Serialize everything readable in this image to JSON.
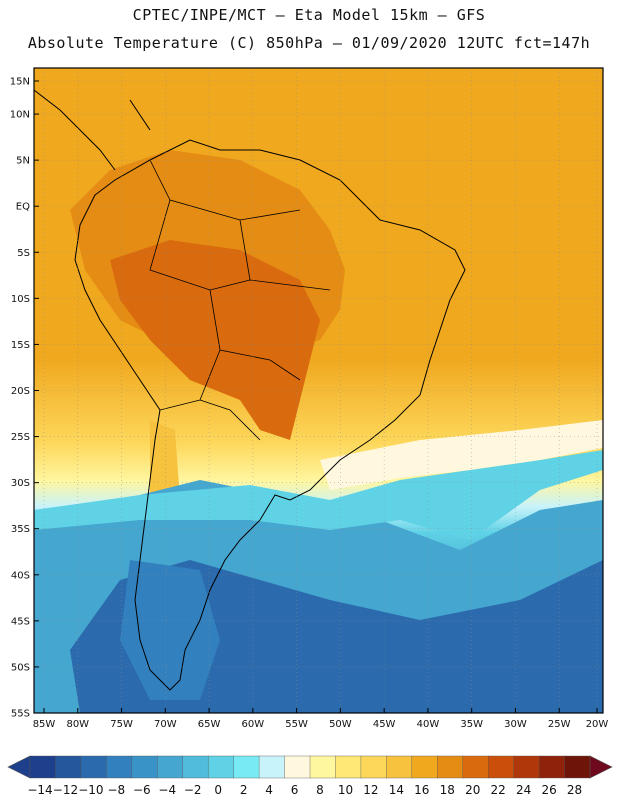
{
  "title": {
    "line1": "CPTEC/INPE/MCT –  Eta Model 15km – GFS",
    "line2": "Absolute Temperature (C) 850hPa – 01/09/2020 12UTC fct=147h"
  },
  "map": {
    "lat_labels": [
      "15N",
      "10N",
      "5N",
      "EQ",
      "5S",
      "10S",
      "15S",
      "20S",
      "25S",
      "30S",
      "35S",
      "40S",
      "45S",
      "50S",
      "55S"
    ],
    "lon_labels": [
      "85W",
      "80W",
      "75W",
      "70W",
      "65W",
      "60W",
      "55W",
      "50W",
      "45W",
      "40W",
      "35W",
      "30W",
      "25W",
      "20W"
    ],
    "lat_range": [
      15,
      -55
    ],
    "lon_range": [
      -85,
      -20
    ]
  },
  "colorbar": {
    "labels": [
      "-14",
      "-12",
      "-10",
      "-8",
      "-6",
      "-4",
      "-2",
      "0",
      "2",
      "4",
      "6",
      "8",
      "10",
      "12",
      "14",
      "16",
      "18",
      "20",
      "22",
      "24",
      "26",
      "28"
    ],
    "colors": [
      "#1e3f8c",
      "#24579c",
      "#2a6aad",
      "#3280bd",
      "#3a93c6",
      "#45a6d0",
      "#52bcdc",
      "#5fd2e6",
      "#78eaf3",
      "#c9f3fb",
      "#fff8de",
      "#fff6a0",
      "#ffe876",
      "#fdd75a",
      "#f7c23e",
      "#f0a81f",
      "#e58c14",
      "#d96b0e",
      "#c94f0b",
      "#b03709",
      "#8e220a",
      "#6f1408"
    ]
  }
}
